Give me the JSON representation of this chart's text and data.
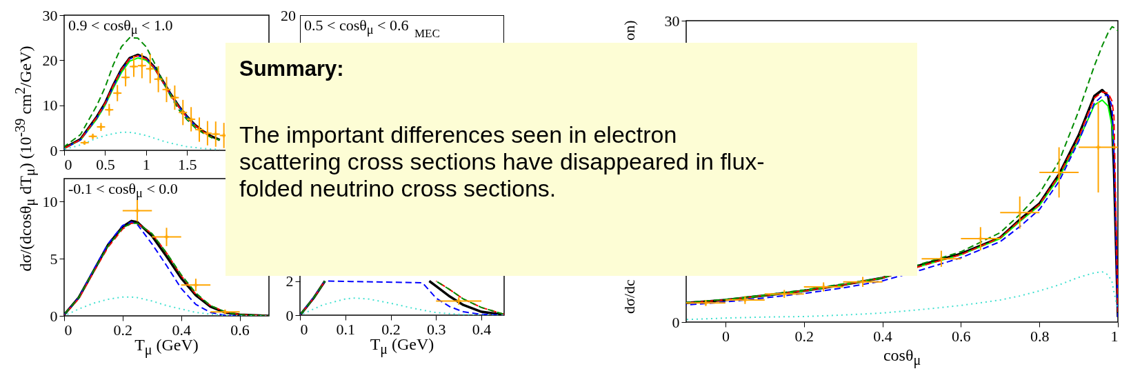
{
  "chart_data": [
    {
      "type": "line",
      "annotations": [
        "0.9 < cosθ$_{μ}$ < 1.0"
      ],
      "ylabel": "dσ/(dcosθ$_{μ}$ dT$_{μ}$) (10$^{-39}$ cm$^{2}$/GeV)",
      "xlim": [
        0,
        2.5
      ],
      "ylim": [
        0,
        30
      ],
      "xticks": [
        0,
        0.5,
        1,
        1.5
      ],
      "yticks": [
        0,
        10,
        20,
        30
      ],
      "x": [
        0,
        0.2,
        0.4,
        0.5,
        0.6,
        0.7,
        0.8,
        0.9,
        1.0,
        1.1,
        1.2,
        1.3,
        1.4,
        1.5,
        1.6,
        1.7,
        1.8,
        1.9
      ],
      "series": [
        {
          "color": "#000000",
          "line_style": "solid",
          "values": [
            0.5,
            2.5,
            7.5,
            10.5,
            14.5,
            18,
            20.5,
            21.2,
            20.5,
            18.5,
            15.5,
            12.5,
            9.8,
            7.5,
            5.6,
            4.2,
            3.1,
            2.3
          ]
        },
        {
          "color": "#00ff00",
          "line_style": "solid",
          "values": [
            0.4,
            2.3,
            7.0,
            10.0,
            13.8,
            17.3,
            19.8,
            20.5,
            20.0,
            18.2,
            15.3,
            12.4,
            9.7,
            7.4,
            5.5,
            null,
            null,
            null
          ]
        },
        {
          "color": "#0000ff",
          "line_style": "dashed",
          "values": [
            0.4,
            2.3,
            7.2,
            10.2,
            14.2,
            17.7,
            20.3,
            21.0,
            20.4,
            18.4,
            15.4,
            12.4,
            9.7,
            7.4,
            5.5,
            null,
            null,
            null
          ]
        },
        {
          "color": "#ff0000",
          "line_style": "dashed",
          "values": [
            0.4,
            2.4,
            7.4,
            10.4,
            14.4,
            17.9,
            20.4,
            21.0,
            20.3,
            18.3,
            15.3,
            12.3,
            9.6,
            7.3,
            5.5,
            4.1,
            3.0,
            null
          ]
        },
        {
          "color": "#008c00",
          "line_style": "dashed",
          "values": [
            0.8,
            3.5,
            10,
            14,
            19,
            23,
            25,
            24.9,
            23,
            19.5,
            15.5,
            12,
            9,
            6.8,
            5,
            3.8,
            2.8,
            2.3
          ]
        },
        {
          "color": "#40e0d0",
          "line_style": "dotted",
          "values": [
            0.2,
            1.2,
            2.7,
            3.3,
            3.7,
            4.0,
            4.0,
            3.7,
            3.3,
            2.7,
            2.1,
            1.6,
            1.2,
            0.8,
            0.6,
            0.4,
            0.3,
            0.2
          ]
        },
        {
          "type": "scatter",
          "marker": "cross",
          "color": "#ffa500",
          "x": [
            0.25,
            0.35,
            0.45,
            0.55,
            0.65,
            0.75,
            0.85,
            0.95,
            1.05,
            1.15,
            1.25,
            1.35,
            1.45,
            1.55,
            1.65,
            1.75,
            1.85,
            1.95
          ],
          "values": [
            1.7,
            3.1,
            5.2,
            9.0,
            12.7,
            16.2,
            18.6,
            18.8,
            18.1,
            15.8,
            13.5,
            11.7,
            8.4,
            6.9,
            4.6,
            3.8,
            3.6,
            3.3
          ],
          "errors": [
            0.4,
            0.6,
            0.9,
            1.3,
            1.8,
            2.0,
            2.3,
            2.8,
            3.2,
            2.9,
            2.8,
            2.7,
            2.8,
            2.7,
            2.7,
            2.7,
            2.8,
            2.8
          ],
          "xerrors": [
            0.05,
            0.05,
            0.05,
            0.05,
            0.05,
            0.05,
            0.05,
            0.05,
            0.05,
            0.05,
            0.05,
            0.05,
            0.05,
            0.05,
            0.05,
            0.05,
            0.05,
            0.05
          ]
        }
      ]
    },
    {
      "type": "other",
      "annotations": [
        "0.5 < cosθ$_{μ}$ < 0.6",
        "20",
        "MEC"
      ]
    },
    {
      "type": "line",
      "annotations": [
        "-0.1 < cosθ$_{μ}$ < 0.0"
      ],
      "xlabel": "T$_{μ}$ (GeV)",
      "xlim": [
        0,
        0.7
      ],
      "ylim": [
        0,
        12
      ],
      "xticks": [
        0,
        0.2,
        0.4,
        0.6
      ],
      "yticks": [
        0,
        5,
        10
      ],
      "x": [
        0,
        0.05,
        0.1,
        0.15,
        0.2,
        0.23,
        0.25,
        0.3,
        0.35,
        0.4,
        0.45,
        0.5,
        0.55,
        0.6,
        0.7
      ],
      "series": [
        {
          "color": "#000000",
          "line_style": "solid",
          "values": [
            0.1,
            1.6,
            3.9,
            6.2,
            7.8,
            8.3,
            8.2,
            7.0,
            5.2,
            3.3,
            1.8,
            0.8,
            0.3,
            0.1,
            0
          ]
        },
        {
          "color": "#0000ff",
          "line_style": "dashed",
          "values": [
            0.1,
            1.6,
            4.0,
            6.3,
            7.9,
            8.2,
            8.0,
            6.3,
            4.4,
            2.4,
            1.0,
            0.3,
            0.05,
            0,
            0
          ]
        },
        {
          "color": "#ff0000",
          "line_style": "dashed",
          "values": [
            0.1,
            1.5,
            3.8,
            6.0,
            7.6,
            8.1,
            8.1,
            7.2,
            5.5,
            3.5,
            1.9,
            0.9,
            0.35,
            0.1,
            0
          ]
        },
        {
          "color": "#008c00",
          "line_style": "dashed",
          "values": [
            0.1,
            1.6,
            3.9,
            6.1,
            7.7,
            8.1,
            8.1,
            7.2,
            5.5,
            3.6,
            2.0,
            0.9,
            0.35,
            0.1,
            0
          ]
        },
        {
          "color": "#40e0d0",
          "line_style": "dotted",
          "values": [
            0,
            0.6,
            1.1,
            1.45,
            1.65,
            1.65,
            1.6,
            1.3,
            0.9,
            0.6,
            0.3,
            0.15,
            0.05,
            0,
            0
          ]
        },
        {
          "type": "scatter",
          "marker": "cross",
          "color": "#ffa500",
          "x": [
            0.25,
            0.35,
            0.45,
            0.55
          ],
          "values": [
            9.2,
            6.9,
            2.7,
            0.35
          ],
          "errors": [
            0.95,
            0.8,
            0.55,
            0.2
          ],
          "xerrors": [
            0.05,
            0.05,
            0.05,
            0.05
          ]
        }
      ]
    },
    {
      "type": "line",
      "xlabel": "T$_{μ}$ (GeV)",
      "xlim": [
        0,
        0.45
      ],
      "ylim": [
        0,
        8
      ],
      "xticks": [
        0,
        0.1,
        0.2,
        0.3,
        0.4
      ],
      "yticks": [
        0,
        2
      ],
      "x": [
        0,
        0.03,
        0.055,
        0.27,
        0.285,
        0.3,
        0.33,
        0.36,
        0.4,
        0.45
      ],
      "series": [
        {
          "color": "#000000",
          "line_style": "solid",
          "values": [
            0,
            1.0,
            2.0,
            null,
            2.0,
            1.7,
            1.1,
            0.6,
            0.2,
            0.02
          ]
        },
        {
          "color": "#0000ff",
          "line_style": "dashed",
          "values": [
            0,
            1.05,
            2.0,
            1.9,
            1.45,
            1.0,
            0.5,
            0.2,
            0.05,
            0
          ]
        },
        {
          "color": "#ff0000",
          "line_style": "dashed",
          "values": [
            0,
            1.0,
            2.0,
            null,
            null,
            2.0,
            1.5,
            0.95,
            0.45,
            0.05
          ]
        },
        {
          "color": "#008c00",
          "line_style": "dashed",
          "values": [
            0,
            1.0,
            2.0,
            null,
            null,
            2.0,
            1.5,
            0.95,
            0.45,
            0.05
          ]
        },
        {
          "color": "#40e0d0",
          "line_style": "dotted",
          "x": [
            0,
            0.05,
            0.1,
            0.12,
            0.15,
            0.2,
            0.25,
            0.3,
            0.35,
            0.4,
            0.45
          ],
          "values": [
            0,
            0.6,
            0.95,
            1.0,
            0.95,
            0.7,
            0.4,
            0.15,
            0.05,
            0,
            0
          ]
        },
        {
          "type": "scatter",
          "marker": "cross",
          "color": "#ffa500",
          "x": [
            0.35
          ],
          "values": [
            0.83
          ],
          "errors": [
            0.22
          ],
          "xerrors": [
            0.05
          ]
        }
      ]
    },
    {
      "type": "line",
      "xlabel": "cosθ$_{μ}$",
      "annotations": [
        "dσ/dc",
        "on)"
      ],
      "xlim": [
        -0.1,
        1.0
      ],
      "ylim": [
        0,
        30
      ],
      "xticks": [
        0,
        0.2,
        0.4,
        0.6,
        0.8,
        1
      ],
      "yticks": [
        0,
        30
      ],
      "x": [
        -0.1,
        0,
        0.1,
        0.2,
        0.3,
        0.4,
        0.5,
        0.6,
        0.7,
        0.75,
        0.8,
        0.85,
        0.9,
        0.94,
        0.96,
        0.975,
        0.985,
        0.99,
        1.0
      ],
      "series": [
        {
          "color": "#000000",
          "line_style": "solid",
          "values": [
            1.9,
            2.2,
            2.65,
            3.1,
            3.7,
            4.4,
            5.7,
            6.8,
            8.4,
            10.2,
            11.8,
            14.7,
            18.6,
            22.5,
            23.1,
            22.5,
            20.0,
            15.2,
            0.5
          ]
        },
        {
          "color": "#00ff00",
          "line_style": "solid",
          "values": [
            null,
            2.2,
            2.65,
            3.1,
            3.7,
            4.4,
            5.6,
            6.7,
            8.3,
            10.0,
            11.6,
            14.4,
            18.1,
            21.6,
            22.1,
            21.5,
            19.5,
            17.0,
            null
          ]
        },
        {
          "color": "#0000ff",
          "line_style": "dashed",
          "values": [
            1.7,
            2.0,
            2.4,
            2.85,
            3.4,
            4.1,
            5.2,
            6.4,
            8.0,
            9.5,
            11.2,
            14.0,
            18.0,
            21.8,
            22.5,
            22.6,
            21.5,
            17.0,
            0.5
          ]
        },
        {
          "color": "#ff0000",
          "line_style": "dashed",
          "values": [
            1.9,
            2.2,
            2.65,
            3.1,
            3.7,
            4.4,
            5.6,
            6.7,
            8.4,
            10.1,
            11.7,
            14.6,
            18.4,
            22.3,
            22.9,
            22.8,
            22.0,
            20.5,
            1.0
          ]
        },
        {
          "color": "#008c00",
          "line_style": "dashed",
          "values": [
            1.95,
            2.25,
            2.7,
            3.2,
            3.8,
            4.4,
            5.8,
            7.0,
            8.9,
            10.7,
            12.8,
            16.0,
            21.0,
            25.5,
            27.5,
            28.8,
            29.4,
            29.3,
            29.0
          ]
        },
        {
          "color": "#40e0d0",
          "line_style": "dotted",
          "values": [
            0.25,
            0.4,
            0.5,
            0.55,
            0.7,
            0.9,
            1.25,
            1.65,
            2.2,
            2.6,
            3.1,
            3.7,
            4.45,
            4.9,
            5.0,
            4.7,
            4.0,
            3.0,
            1.2
          ]
        },
        {
          "type": "scatter",
          "marker": "cross",
          "color": "#ffa500",
          "x": [
            -0.05,
            0.05,
            0.15,
            0.25,
            0.35,
            0.55,
            0.65,
            0.75,
            0.85,
            0.95
          ],
          "values": [
            1.9,
            2.2,
            2.8,
            3.5,
            4.0,
            6.3,
            8.3,
            10.9,
            14.9,
            17.4
          ],
          "errors": [
            0.3,
            0.4,
            0.4,
            0.45,
            0.5,
            0.8,
            1.15,
            1.6,
            2.5,
            4.5
          ],
          "xerrors": [
            0.05,
            0.05,
            0.05,
            0.05,
            0.05,
            0.05,
            0.05,
            0.05,
            0.05,
            0.05
          ]
        }
      ]
    },
    {
      "type": "other",
      "title": "Summary:",
      "annotations": [
        "The important differences seen in electron scattering cross sections have disappeared in flux-folded neutrino cross sections."
      ]
    }
  ]
}
